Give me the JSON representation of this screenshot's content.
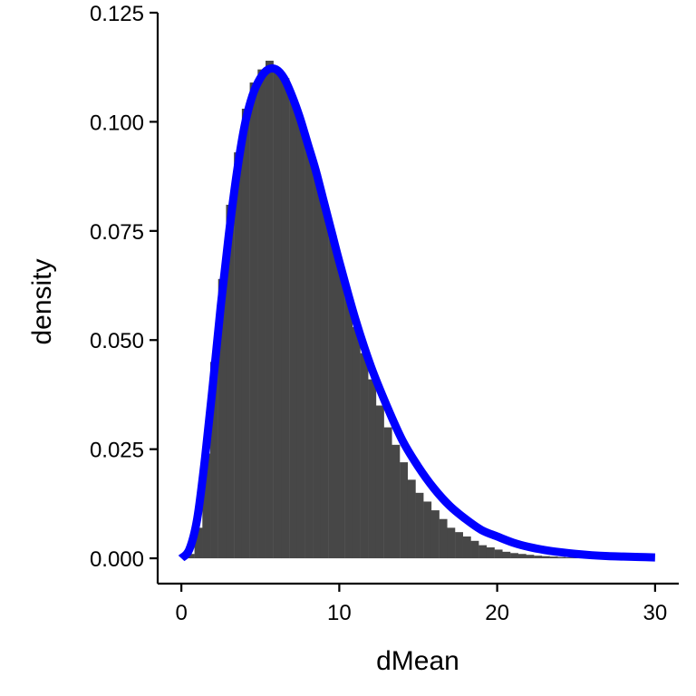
{
  "chart_data": {
    "type": "bar",
    "title": "",
    "xlabel": "dMean",
    "ylabel": "density",
    "xlim": [
      -1.5,
      31.5
    ],
    "ylim": [
      -0.0058,
      0.125
    ],
    "grid": false,
    "legend": "none",
    "x_ticks": [
      0,
      10,
      20,
      30
    ],
    "x_tick_labels": [
      "0",
      "10",
      "20",
      "30"
    ],
    "y_ticks": [
      0,
      0.025,
      0.05,
      0.075,
      0.1,
      0.125
    ],
    "y_tick_labels": [
      "0.000",
      "0.025",
      "0.050",
      "0.075",
      "0.100",
      "0.125"
    ],
    "histogram": {
      "name": "",
      "color": "#474747",
      "bin_width": 0.34,
      "bins": [
        [
          0.5,
          0.001
        ],
        [
          1.0,
          0.007
        ],
        [
          1.5,
          0.024
        ],
        [
          2.0,
          0.045
        ],
        [
          2.5,
          0.064
        ],
        [
          3.0,
          0.081
        ],
        [
          3.5,
          0.093
        ],
        [
          4.0,
          0.103
        ],
        [
          4.5,
          0.109
        ],
        [
          5.0,
          0.112
        ],
        [
          5.5,
          0.114
        ],
        [
          6.0,
          0.112
        ],
        [
          6.5,
          0.11
        ],
        [
          7.0,
          0.105
        ],
        [
          7.5,
          0.1
        ],
        [
          8.0,
          0.094
        ],
        [
          8.5,
          0.088
        ],
        [
          9.0,
          0.081
        ],
        [
          9.5,
          0.074
        ],
        [
          10.0,
          0.067
        ],
        [
          10.5,
          0.06
        ],
        [
          11.0,
          0.053
        ],
        [
          11.5,
          0.047
        ],
        [
          12.0,
          0.041
        ],
        [
          12.5,
          0.035
        ],
        [
          13.0,
          0.03
        ],
        [
          13.5,
          0.026
        ],
        [
          14.0,
          0.022
        ],
        [
          14.5,
          0.018
        ],
        [
          15.0,
          0.015
        ],
        [
          15.5,
          0.013
        ],
        [
          16.0,
          0.011
        ],
        [
          16.5,
          0.009
        ],
        [
          17.0,
          0.007
        ],
        [
          17.5,
          0.006
        ],
        [
          18.0,
          0.005
        ],
        [
          18.5,
          0.004
        ],
        [
          19.0,
          0.003
        ],
        [
          19.5,
          0.0025
        ],
        [
          20.0,
          0.002
        ],
        [
          20.5,
          0.0015
        ],
        [
          21.0,
          0.0012
        ],
        [
          21.5,
          0.001
        ],
        [
          22.0,
          0.0008
        ],
        [
          22.5,
          0.0006
        ],
        [
          23.0,
          0.0005
        ],
        [
          23.5,
          0.0004
        ],
        [
          24.0,
          0.0003
        ],
        [
          24.5,
          0.0002
        ],
        [
          25.0,
          0.0002
        ]
      ]
    },
    "density_curve": {
      "name": "",
      "color": "#0000ff",
      "x": [
        0,
        0.5,
        1,
        1.5,
        2,
        2.5,
        3,
        3.5,
        4,
        4.5,
        5,
        5.5,
        6,
        6.5,
        7,
        7.5,
        8,
        8.5,
        9,
        9.5,
        10,
        11,
        12,
        13,
        14,
        15,
        16,
        17,
        18,
        19,
        20,
        21,
        22,
        23,
        24,
        25,
        26,
        27,
        28,
        29,
        30
      ],
      "y": [
        0.0,
        0.002,
        0.009,
        0.023,
        0.04,
        0.058,
        0.074,
        0.088,
        0.099,
        0.106,
        0.11,
        0.112,
        0.112,
        0.11,
        0.106,
        0.101,
        0.095,
        0.089,
        0.082,
        0.075,
        0.068,
        0.055,
        0.044,
        0.035,
        0.027,
        0.021,
        0.016,
        0.012,
        0.009,
        0.0065,
        0.005,
        0.0036,
        0.0026,
        0.0019,
        0.0014,
        0.001,
        0.0007,
        0.0005,
        0.0004,
        0.0003,
        0.0002
      ]
    }
  }
}
